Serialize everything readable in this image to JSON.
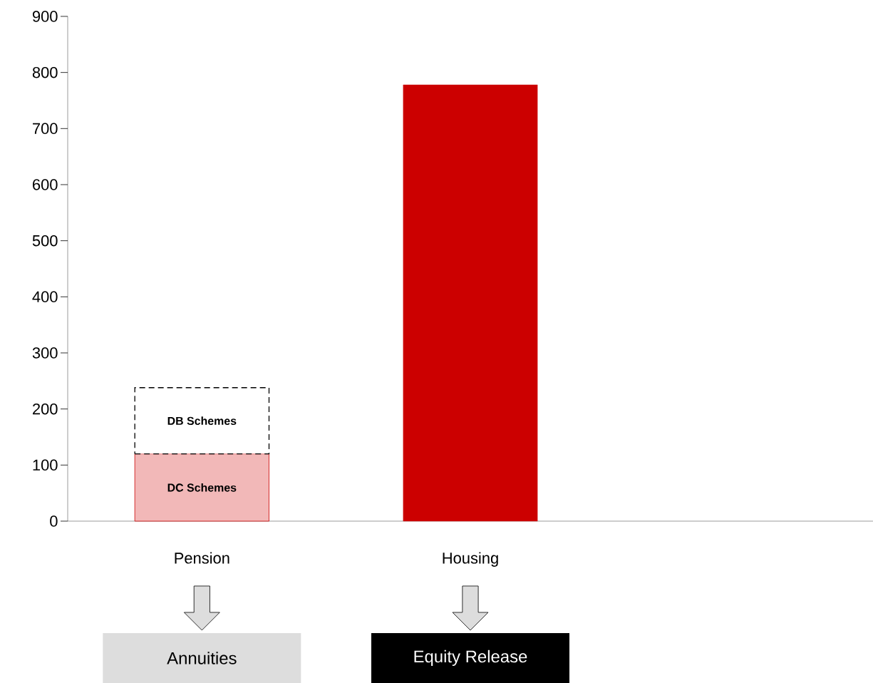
{
  "chart_data": {
    "type": "bar",
    "stacked": true,
    "categories": [
      "Pension",
      "Housing",
      null
    ],
    "series": [
      {
        "name": "DC Schemes",
        "color": "#f2b8b8",
        "values": [
          120,
          null,
          null
        ]
      },
      {
        "name": "DB Schemes",
        "color": "#ffffff",
        "line_style": "dashed",
        "values": [
          118,
          null,
          null
        ]
      },
      {
        "color": "#cc0000",
        "values": [
          null,
          778,
          null
        ]
      }
    ],
    "ylim": [
      0,
      900
    ],
    "yticks": [
      0,
      100,
      200,
      300,
      400,
      500,
      600,
      700,
      800,
      900
    ],
    "annotations": [
      "Annuities",
      "Equity Release"
    ]
  }
}
